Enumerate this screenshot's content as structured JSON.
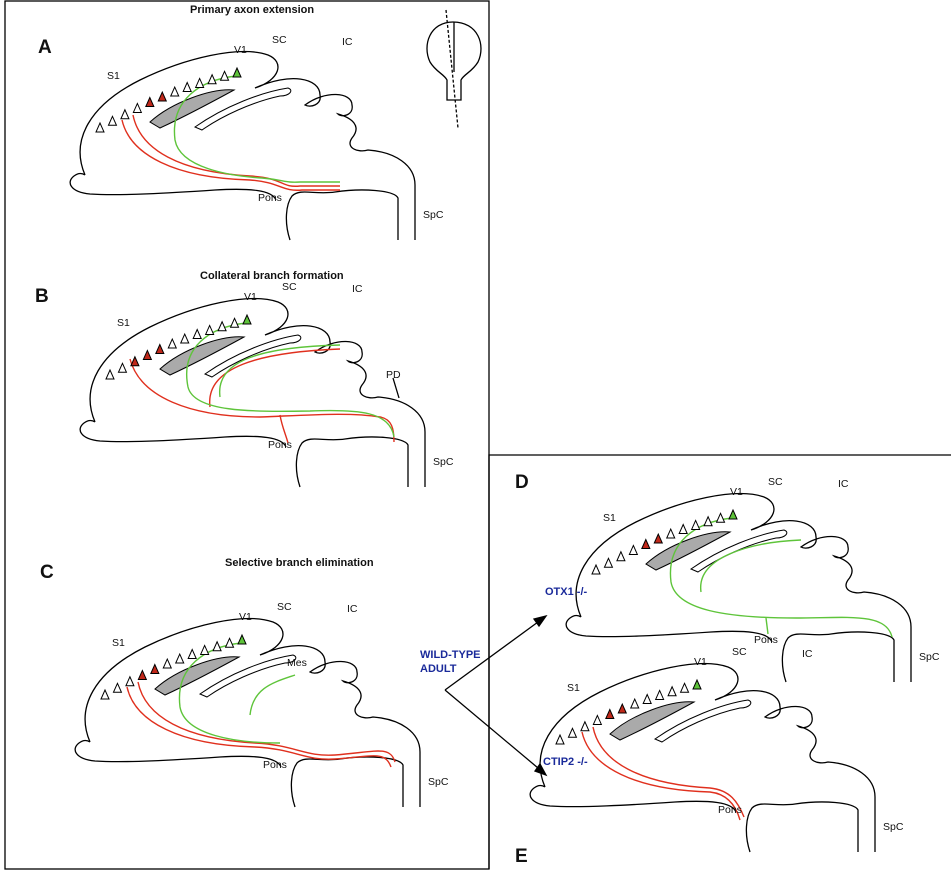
{
  "panels": [
    {
      "letter": "A",
      "title": "Primary axon extension",
      "labels": {
        "s1": "S1",
        "v1": "V1",
        "sc": "SC",
        "ic": "IC",
        "pons": "Pons",
        "spc": "SpC"
      }
    },
    {
      "letter": "B",
      "title": "Collateral branch formation",
      "labels": {
        "s1": "S1",
        "v1": "V1",
        "sc": "SC",
        "ic": "IC",
        "pons": "Pons",
        "spc": "SpC",
        "pd": "PD"
      }
    },
    {
      "letter": "C",
      "title": "Selective branch elimination",
      "labels": {
        "s1": "S1",
        "v1": "V1",
        "sc": "SC",
        "ic": "IC",
        "pons": "Pons",
        "spc": "SpC",
        "mes": "Mes"
      }
    },
    {
      "letter": "D",
      "labels": {
        "s1": "S1",
        "v1": "V1",
        "sc": "SC",
        "ic": "IC",
        "pons": "Pons",
        "spc": "SpC"
      }
    },
    {
      "letter": "E",
      "labels": {
        "s1": "S1",
        "v1": "V1",
        "sc": "SC",
        "ic": "IC",
        "pons": "Pons",
        "spc": "SpC"
      }
    }
  ],
  "genotypes": {
    "wild_type": [
      "WILD-TYPE",
      "ADULT"
    ],
    "otx1": "OTX1 -/-",
    "ctip2": "CTIP2 -/-"
  }
}
